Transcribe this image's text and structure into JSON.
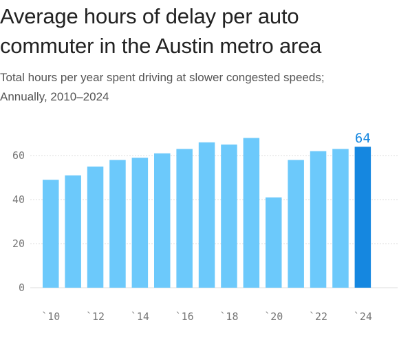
{
  "header": {
    "title_line1": "Average hours of delay per auto",
    "title_line2": "commuter in the Austin metro area",
    "subtitle_line1": "Total hours per year spent driving at slower congested speeds;",
    "subtitle_line2": "Annually, 2010–2024"
  },
  "colors": {
    "bar": "#6cc9fb",
    "highlight_bar": "#1587e0",
    "highlight_label": "#1587e0",
    "grid": "#dddddd",
    "axis_text": "#777777"
  },
  "chart_data": {
    "type": "bar",
    "title": "Average hours of delay per auto commuter in the Austin metro area",
    "subtitle": "Total hours per year spent driving at slower congested speeds; Annually, 2010–2024",
    "categories": [
      "2010",
      "2011",
      "2012",
      "2013",
      "2014",
      "2015",
      "2016",
      "2017",
      "2018",
      "2019",
      "2020",
      "2021",
      "2022",
      "2023",
      "2024"
    ],
    "values": [
      49,
      51,
      55,
      58,
      59,
      61,
      63,
      66,
      65,
      68,
      41,
      58,
      62,
      63,
      64
    ],
    "x_tick_labels": [
      "`10",
      "`12",
      "`14",
      "`16",
      "`18",
      "`20",
      "`22",
      "`24"
    ],
    "x_tick_categories": [
      "2010",
      "2012",
      "2014",
      "2016",
      "2018",
      "2020",
      "2022",
      "2024"
    ],
    "y_ticks": [
      0,
      20,
      40,
      60
    ],
    "ylim": [
      0,
      70
    ],
    "xlabel": "",
    "ylabel": "",
    "highlight": {
      "category": "2024",
      "label": "64"
    },
    "grid": true,
    "legend": "none"
  }
}
